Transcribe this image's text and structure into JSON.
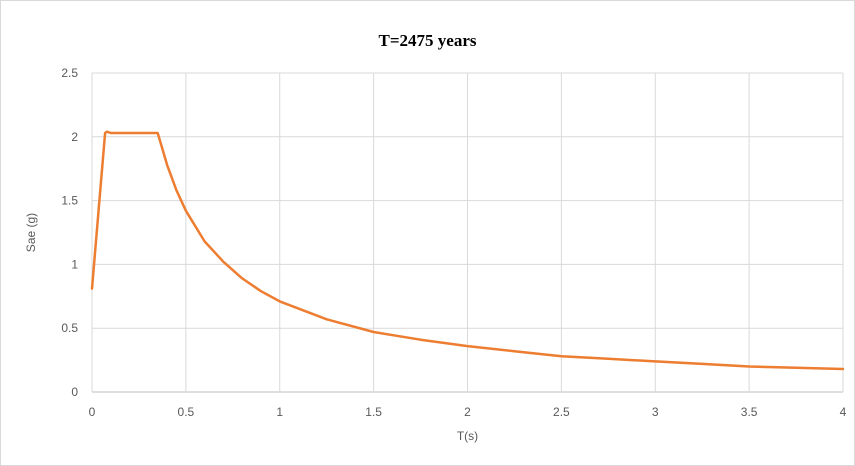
{
  "chart_data": {
    "type": "line",
    "title": "T=2475 years",
    "xlabel": "T(s)",
    "ylabel": "Sae (g)",
    "xlim": [
      0,
      4
    ],
    "ylim": [
      0,
      2.5
    ],
    "x_ticks": [
      "0",
      "0.5",
      "1",
      "1.5",
      "2",
      "2.5",
      "3",
      "3.5",
      "4"
    ],
    "y_ticks": [
      "0",
      "0.5",
      "1",
      "1.5",
      "2",
      "2.5"
    ],
    "grid": true,
    "legend": "none",
    "line_color": "#ED7D31",
    "series": [
      {
        "x": [
          0,
          0.07,
          0.08,
          0.1,
          0.15,
          0.2,
          0.25,
          0.3,
          0.35,
          0.4,
          0.45,
          0.5,
          0.6,
          0.7,
          0.8,
          0.9,
          1.0,
          1.25,
          1.5,
          1.75,
          2.0,
          2.25,
          2.5,
          2.75,
          3.0,
          3.25,
          3.5,
          3.75,
          4.0
        ],
        "y": [
          0.81,
          2.03,
          2.04,
          2.03,
          2.03,
          2.03,
          2.03,
          2.03,
          2.03,
          1.78,
          1.58,
          1.42,
          1.18,
          1.02,
          0.89,
          0.79,
          0.71,
          0.57,
          0.47,
          0.41,
          0.36,
          0.32,
          0.28,
          0.26,
          0.24,
          0.22,
          0.2,
          0.19,
          0.18
        ]
      }
    ]
  }
}
